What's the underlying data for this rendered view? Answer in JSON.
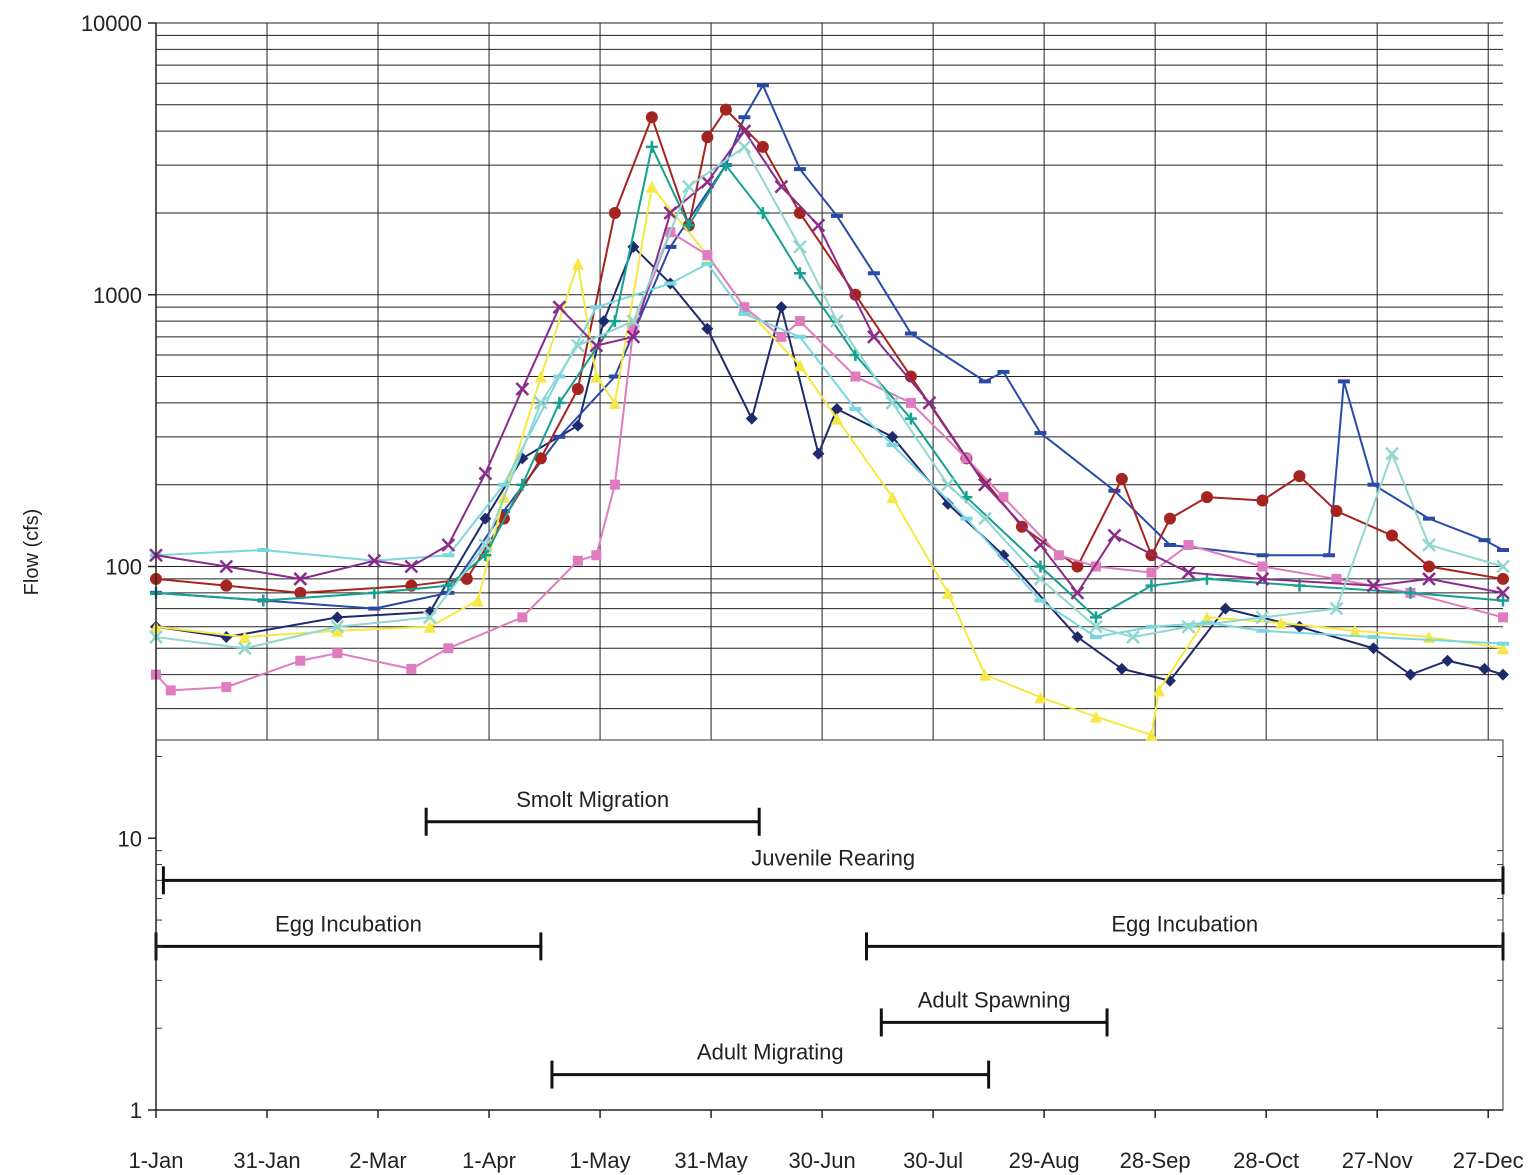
{
  "chart_data": {
    "type": "line",
    "title": "",
    "xlabel": "",
    "ylabel": "Flow (cfs)",
    "y_scale": "log",
    "ylim": [
      1,
      10000
    ],
    "grid": true,
    "legend": "none",
    "y_ticks": [
      "1",
      "10",
      "100",
      "1000",
      "10000"
    ],
    "x_ticks": [
      "1-Jan",
      "31-Jan",
      "2-Mar",
      "1-Apr",
      "1-May",
      "31-May",
      "30-Jun",
      "30-Jul",
      "29-Aug",
      "28-Sep",
      "28-Oct",
      "27-Nov",
      "27-Dec"
    ],
    "x_tick_days": [
      1,
      31,
      61,
      91,
      121,
      151,
      181,
      211,
      241,
      271,
      301,
      331,
      361
    ],
    "periods": [
      {
        "label": "Smolt Migration",
        "start": "15-Mar",
        "end": "13-Jun",
        "y": 11.5
      },
      {
        "label": "Juvenile Rearing",
        "start": "3-Jan",
        "end": "31-Dec",
        "y": 7
      },
      {
        "label": "Egg Incubation",
        "start": "1-Jan",
        "end": "15-Apr",
        "y": 4
      },
      {
        "label": "Egg Incubation",
        "start": "12-Jul",
        "end": "31-Dec",
        "y": 4
      },
      {
        "label": "Adult Spawning",
        "start": "16-Jul",
        "end": "15-Sep",
        "y": 2.1
      },
      {
        "label": "Adult Migrating",
        "start": "18-Apr",
        "end": "14-Aug",
        "y": 1.35
      }
    ],
    "series": [
      {
        "color": "#1f2a6b",
        "marker": "diamond",
        "x": [
          1,
          20,
          50,
          75,
          90,
          100,
          115,
          122,
          130,
          140,
          150,
          162,
          170,
          180,
          185,
          200,
          215,
          230,
          250,
          262,
          275,
          290,
          310,
          330,
          340,
          350,
          360,
          365
        ],
        "y": [
          60,
          55,
          65,
          68,
          150,
          250,
          330,
          800,
          1500,
          1100,
          750,
          350,
          900,
          260,
          380,
          300,
          170,
          110,
          55,
          42,
          38,
          70,
          60,
          50,
          40,
          45,
          42,
          40
        ]
      },
      {
        "color": "#2a4aa8",
        "marker": "dash",
        "x": [
          1,
          30,
          60,
          80,
          95,
          110,
          125,
          140,
          155,
          160,
          165,
          175,
          185,
          195,
          205,
          225,
          230,
          240,
          260,
          275,
          300,
          318,
          322,
          330,
          345,
          360,
          365
        ],
        "y": [
          80,
          75,
          70,
          80,
          160,
          300,
          500,
          1500,
          3000,
          4500,
          5900,
          2900,
          1950,
          1200,
          720,
          480,
          520,
          310,
          190,
          120,
          110,
          110,
          480,
          200,
          150,
          125,
          115
        ]
      },
      {
        "color": "#a62420",
        "marker": "circle",
        "x": [
          1,
          20,
          40,
          70,
          85,
          95,
          105,
          115,
          125,
          135,
          145,
          150,
          155,
          165,
          175,
          190,
          205,
          220,
          235,
          250,
          262,
          270,
          275,
          285,
          300,
          310,
          320,
          335,
          345,
          365
        ],
        "y": [
          90,
          85,
          80,
          85,
          90,
          150,
          250,
          450,
          2000,
          4500,
          1800,
          3800,
          4800,
          3500,
          2000,
          1000,
          500,
          250,
          140,
          100,
          210,
          110,
          150,
          180,
          175,
          215,
          160,
          130,
          100,
          90
        ]
      },
      {
        "color": "#f5e844",
        "marker": "triangle",
        "x": [
          1,
          25,
          50,
          75,
          88,
          95,
          105,
          115,
          120,
          125,
          135,
          150,
          160,
          175,
          185,
          200,
          215,
          225,
          240,
          255,
          270,
          272,
          285,
          305,
          325,
          345,
          365
        ],
        "y": [
          60,
          55,
          58,
          60,
          75,
          180,
          500,
          1300,
          500,
          400,
          2500,
          1400,
          900,
          550,
          350,
          180,
          80,
          40,
          33,
          28,
          24,
          35,
          65,
          62,
          58,
          55,
          50
        ]
      },
      {
        "color": "#df7cbf",
        "marker": "square",
        "x": [
          1,
          5,
          20,
          40,
          50,
          70,
          80,
          100,
          115,
          120,
          125,
          130,
          140,
          150,
          160,
          170,
          175,
          190,
          205,
          220,
          230,
          245,
          255,
          270,
          280,
          300,
          320,
          340,
          365
        ],
        "y": [
          40,
          35,
          36,
          45,
          48,
          42,
          50,
          65,
          105,
          110,
          200,
          750,
          1700,
          1400,
          900,
          700,
          800,
          500,
          400,
          250,
          180,
          110,
          100,
          95,
          120,
          100,
          90,
          80,
          65
        ]
      },
      {
        "color": "#7ad6e0",
        "marker": "dash",
        "x": [
          1,
          30,
          60,
          80,
          95,
          110,
          120,
          140,
          150,
          160,
          175,
          190,
          200,
          220,
          240,
          255,
          270,
          285,
          300,
          330,
          365
        ],
        "y": [
          110,
          115,
          105,
          110,
          200,
          500,
          900,
          1100,
          1300,
          850,
          700,
          380,
          280,
          150,
          75,
          55,
          60,
          62,
          58,
          55,
          52
        ]
      },
      {
        "color": "#16a08f",
        "marker": "plus",
        "x": [
          1,
          30,
          60,
          80,
          90,
          100,
          110,
          125,
          135,
          145,
          155,
          165,
          175,
          190,
          205,
          220,
          240,
          255,
          270,
          285,
          310,
          340,
          365
        ],
        "y": [
          80,
          75,
          80,
          85,
          110,
          200,
          400,
          800,
          3500,
          1800,
          3000,
          2000,
          1200,
          600,
          350,
          180,
          100,
          65,
          85,
          90,
          85,
          80,
          75
        ]
      },
      {
        "color": "#8a2c8c",
        "marker": "x",
        "x": [
          1,
          20,
          40,
          60,
          70,
          80,
          90,
          100,
          110,
          120,
          130,
          140,
          150,
          160,
          170,
          180,
          195,
          210,
          225,
          240,
          250,
          260,
          280,
          300,
          330,
          345,
          365
        ],
        "y": [
          110,
          100,
          90,
          105,
          100,
          120,
          220,
          450,
          900,
          650,
          700,
          2000,
          2600,
          4000,
          2500,
          1800,
          700,
          400,
          200,
          120,
          80,
          130,
          95,
          90,
          85,
          90,
          80
        ]
      },
      {
        "color": "#8fd7cf",
        "marker": "x",
        "x": [
          1,
          25,
          50,
          75,
          90,
          105,
          115,
          130,
          145,
          160,
          175,
          185,
          200,
          215,
          225,
          240,
          255,
          265,
          280,
          300,
          320,
          335,
          345,
          365
        ],
        "y": [
          55,
          50,
          60,
          65,
          120,
          400,
          650,
          800,
          2500,
          3500,
          1500,
          800,
          400,
          200,
          150,
          90,
          60,
          55,
          60,
          65,
          70,
          260,
          120,
          100
        ]
      }
    ]
  }
}
